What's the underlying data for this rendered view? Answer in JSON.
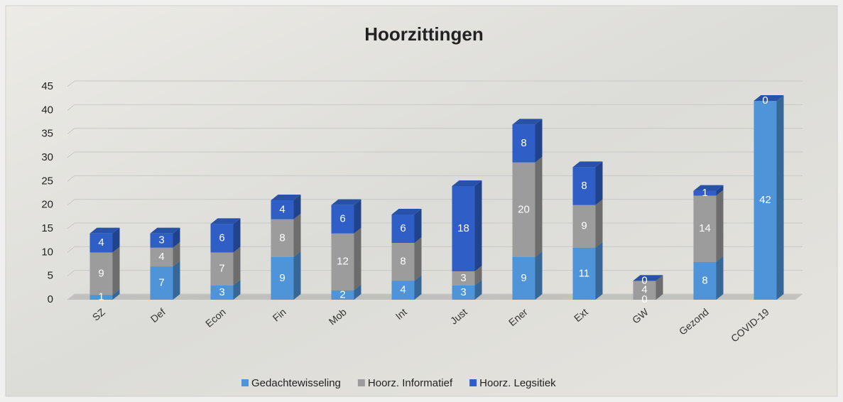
{
  "chart_data": {
    "type": "bar3d_stacked",
    "title": "Hoorzittingen",
    "categories": [
      "SZ",
      "Def",
      "Econ",
      "Fin",
      "Mob",
      "Int",
      "Just",
      "Ener",
      "Ext",
      "GW",
      "Gezond",
      "COVID-19"
    ],
    "series": [
      {
        "name": "Gedachtewisseling",
        "color": "#4f93d8",
        "values": [
          1,
          7,
          3,
          9,
          2,
          4,
          3,
          9,
          11,
          0,
          8,
          42
        ]
      },
      {
        "name": "Hoorz. Informatief",
        "color": "#9c9c9c",
        "values": [
          9,
          4,
          7,
          8,
          12,
          8,
          3,
          20,
          9,
          4,
          14,
          null
        ]
      },
      {
        "name": "Hoorz. Legsitiek",
        "color": "#2f5fc6",
        "values": [
          4,
          3,
          6,
          4,
          6,
          6,
          18,
          8,
          8,
          0,
          1,
          0
        ]
      }
    ],
    "ylim": [
      0,
      45
    ],
    "yticks": [
      0,
      5,
      10,
      15,
      20,
      25,
      30,
      35,
      40,
      45
    ],
    "grid": true,
    "legend": "bottom"
  }
}
